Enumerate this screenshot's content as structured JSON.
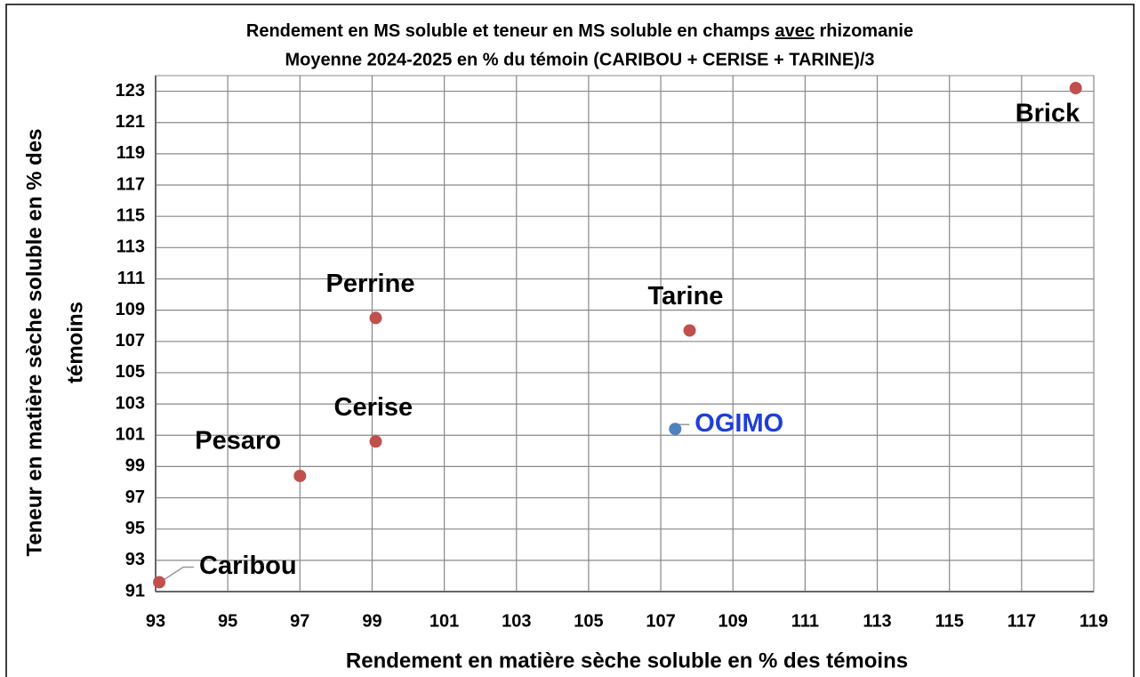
{
  "chart_data": {
    "type": "scatter",
    "title": [
      "Rendement en MS soluble et teneur en MS soluble en champs ",
      "avec",
      " rhizomanie"
    ],
    "subtitle": "Moyenne 2024-2025 en % du témoin (CARIBOU + CERISE + TARINE)/3",
    "xlabel": "Rendement en matière sèche soluble en % des témoins",
    "ylabel": [
      "Teneur en matière sèche soluble en % des",
      "témoins"
    ],
    "labels": [
      "Caribou",
      "Pesaro",
      "Cerise",
      "Perrine",
      "Tarine",
      "Brick",
      "OGIMO"
    ],
    "x": [
      93.1,
      97.0,
      99.1,
      99.1,
      107.8,
      118.5,
      107.4
    ],
    "y": [
      91.6,
      98.4,
      100.6,
      108.5,
      107.7,
      123.2,
      101.4
    ],
    "colors": [
      "#c0504d",
      "#c0504d",
      "#c0504d",
      "#c0504d",
      "#c0504d",
      "#c0504d",
      "#4f81bd"
    ],
    "label_colors": [
      "#000000",
      "#000000",
      "#000000",
      "#000000",
      "#000000",
      "#000000",
      "#1f3fd6"
    ],
    "xlim": [
      93,
      119
    ],
    "xticks": [
      93,
      95,
      97,
      99,
      101,
      103,
      105,
      107,
      109,
      111,
      113,
      115,
      117,
      119
    ],
    "ylim": [
      91,
      124
    ],
    "yticks": [
      91,
      93,
      95,
      97,
      99,
      101,
      103,
      105,
      107,
      109,
      111,
      113,
      115,
      117,
      119,
      121,
      123
    ],
    "grid": true
  }
}
